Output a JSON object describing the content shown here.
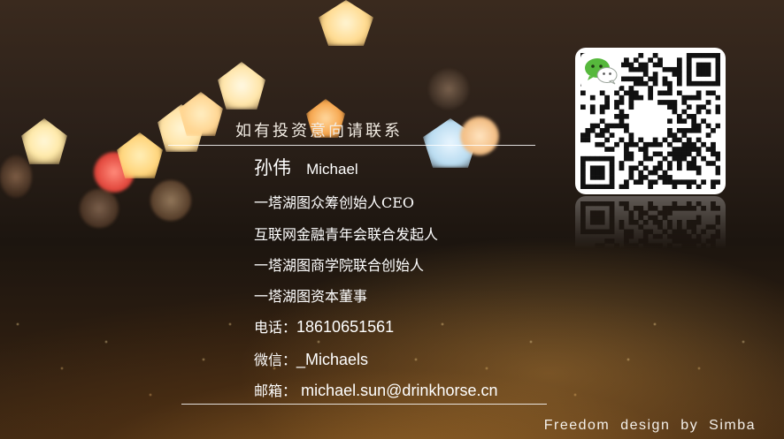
{
  "card": {
    "heading": "如有投资意向请联系",
    "name_cn": "孙伟",
    "name_en": "Michael",
    "titles": [
      "一塔湖图众筹创始人CEO",
      "互联网金融青年会联合发起人",
      "一塔湖图商学院联合创始人",
      "一塔湖图资本董事"
    ],
    "phone_label": "电话：",
    "phone": "18610651561",
    "wechat_label": "微信：",
    "wechat": "_Michaels",
    "email_label": "邮箱：",
    "email": "michael.sun@drinkhorse.cn"
  },
  "footer": {
    "credit": "Freedom design by Simba"
  },
  "qr": {
    "icon": "wechat-logo-icon"
  },
  "colors": {
    "text": "#ffffff",
    "wechat_green": "#56b83c"
  }
}
